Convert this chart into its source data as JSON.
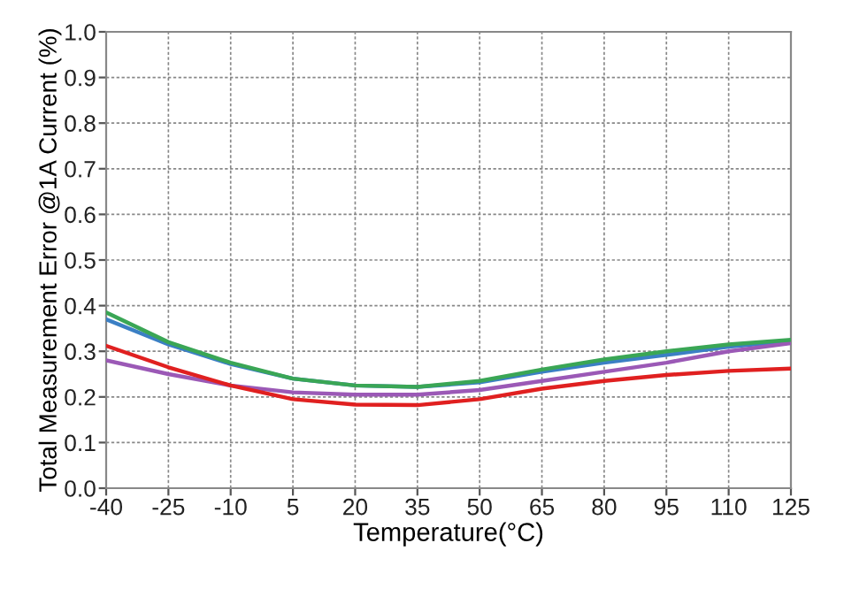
{
  "chart_data": {
    "type": "line",
    "xlabel": "Temperature(°C)",
    "ylabel": "Total Measurement Error @1A Current (%)",
    "x": [
      -40,
      -25,
      -10,
      5,
      20,
      35,
      50,
      65,
      80,
      95,
      110,
      125
    ],
    "series": [
      {
        "color": "#3b7fc4",
        "values": [
          0.37,
          0.315,
          0.272,
          0.24,
          0.225,
          0.222,
          0.232,
          0.255,
          0.275,
          0.292,
          0.31,
          0.322
        ]
      },
      {
        "color": "#9b59b6",
        "values": [
          0.28,
          0.25,
          0.225,
          0.21,
          0.205,
          0.205,
          0.215,
          0.235,
          0.255,
          0.275,
          0.3,
          0.318
        ]
      },
      {
        "color": "#e02020",
        "values": [
          0.312,
          0.265,
          0.225,
          0.195,
          0.183,
          0.182,
          0.195,
          0.218,
          0.235,
          0.248,
          0.257,
          0.262
        ]
      },
      {
        "color": "#3aa655",
        "values": [
          0.385,
          0.32,
          0.275,
          0.24,
          0.225,
          0.222,
          0.235,
          0.26,
          0.282,
          0.3,
          0.315,
          0.325
        ]
      }
    ],
    "xlim": [
      -40,
      125
    ],
    "xticks": [
      -40,
      -25,
      -10,
      5,
      20,
      35,
      50,
      65,
      80,
      95,
      110,
      125
    ],
    "ylim": [
      0,
      1.0
    ],
    "yticks": [
      {
        "value": 0,
        "label": "0.0"
      },
      0.1,
      0.2,
      0.3,
      0.4,
      0.5,
      0.6,
      0.7,
      0.8,
      0.9,
      {
        "value": 1.0,
        "label": "1.0"
      }
    ],
    "grid": true,
    "legend": false,
    "marker": "none",
    "line_style": "solid"
  }
}
